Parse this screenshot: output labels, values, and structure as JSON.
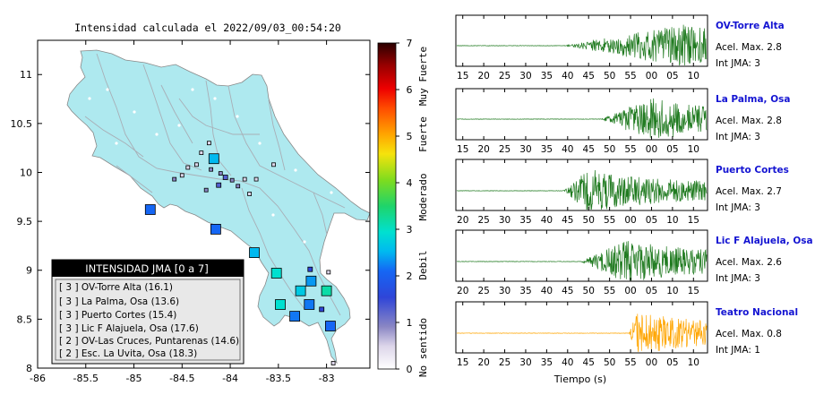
{
  "map": {
    "title": "Intensidad calculada el 2022/09/03_00:54:20",
    "x_ticks": [
      "-86",
      "-85.5",
      "-85",
      "-84.5",
      "-84",
      "-83.5",
      "-83"
    ],
    "y_ticks": [
      "11",
      "10.5",
      "10",
      "9.5",
      "9",
      "8.5",
      "8"
    ],
    "xlim": [
      -86,
      -82.55
    ],
    "ylim": [
      8,
      11.35
    ],
    "legend": {
      "header": "INTENSIDAD JMA [0 a 7]",
      "items": [
        "[ 3 ]  OV-Torre Alta (16.1)",
        "[ 3 ]  La Palma, Osa (13.6)",
        "[ 3 ]  Puerto Cortes (15.4)",
        "[ 3 ]  Lic F Alajuela, Osa (17.6)",
        "[ 2 ]  OV-Las Cruces, Puntarenas (14.6)",
        "[ 2 ]  Esc. La Uvita, Osa (18.3)"
      ]
    }
  },
  "colorbar": {
    "ticks": [
      "0",
      "1",
      "2",
      "3",
      "4",
      "5",
      "6",
      "7"
    ],
    "categories": [
      "No sentido",
      "Debil",
      "Moderado",
      "Fuerte",
      "Muy Fuerte"
    ]
  },
  "colors": {
    "land": "#aee9ef",
    "sea": "#ffffff",
    "trace_green": "#1f7a1f",
    "trace_orange": "#ffa500",
    "station_label": "#1414d2"
  },
  "chart_data": [
    {
      "type": "scatter",
      "title": "Intensidad calculada el 2022/09/03_00:54:20",
      "xlim": [
        -86,
        -82.55
      ],
      "ylim": [
        8,
        11.35
      ],
      "points": [
        {
          "x": -84.17,
          "y": 10.14,
          "intensity": 2.5
        },
        {
          "x": -83.75,
          "y": 9.18,
          "intensity": 2.5
        },
        {
          "x": -83.52,
          "y": 8.97,
          "intensity": 3.0
        },
        {
          "x": -83.16,
          "y": 8.89,
          "intensity": 2.3
        },
        {
          "x": -83.27,
          "y": 8.79,
          "intensity": 2.7
        },
        {
          "x": -83.0,
          "y": 8.79,
          "intensity": 3.2
        },
        {
          "x": -83.48,
          "y": 8.65,
          "intensity": 3.0
        },
        {
          "x": -83.18,
          "y": 8.65,
          "intensity": 2.1
        },
        {
          "x": -83.33,
          "y": 8.53,
          "intensity": 2.1
        },
        {
          "x": -83.17,
          "y": 9.01,
          "intensity": 1.5
        },
        {
          "x": -83.05,
          "y": 8.6,
          "intensity": 1.5
        },
        {
          "x": -84.3,
          "y": 10.2,
          "intensity": 0.5
        },
        {
          "x": -84.35,
          "y": 10.08,
          "intensity": 0.5
        },
        {
          "x": -84.2,
          "y": 10.03,
          "intensity": 1.0
        },
        {
          "x": -84.1,
          "y": 9.99,
          "intensity": 1.0
        },
        {
          "x": -84.05,
          "y": 9.95,
          "intensity": 1.3
        },
        {
          "x": -83.98,
          "y": 9.92,
          "intensity": 1.0
        },
        {
          "x": -83.92,
          "y": 9.86,
          "intensity": 1.0
        },
        {
          "x": -84.12,
          "y": 9.87,
          "intensity": 1.3
        },
        {
          "x": -83.85,
          "y": 9.93,
          "intensity": 0.5
        },
        {
          "x": -83.73,
          "y": 9.93,
          "intensity": 0.5
        },
        {
          "x": -83.55,
          "y": 10.08,
          "intensity": 0.5
        },
        {
          "x": -84.44,
          "y": 10.05,
          "intensity": 0.5
        },
        {
          "x": -84.5,
          "y": 9.97,
          "intensity": 0.5
        },
        {
          "x": -84.58,
          "y": 9.93,
          "intensity": 1.0
        },
        {
          "x": -84.25,
          "y": 9.82,
          "intensity": 1.0
        },
        {
          "x": -83.8,
          "y": 9.78,
          "intensity": 0.5
        },
        {
          "x": -84.22,
          "y": 10.3,
          "intensity": 0.5
        },
        {
          "x": -84.83,
          "y": 9.62,
          "intensity": 2.0
        },
        {
          "x": -84.15,
          "y": 9.42,
          "intensity": 2.0
        },
        {
          "x": -82.98,
          "y": 8.98,
          "intensity": 0.5
        },
        {
          "x": -82.96,
          "y": 8.43,
          "intensity": 2.0
        },
        {
          "x": -82.93,
          "y": 8.05,
          "intensity": 0.5
        }
      ]
    },
    {
      "type": "line",
      "title": "OV-Torre Alta",
      "xlabel": "",
      "x_ticks": [
        "15",
        "20",
        "25",
        "30",
        "35",
        "40",
        "45",
        "50",
        "55",
        "00",
        "05",
        "10"
      ],
      "info": [
        "Acel. Max. 2.8",
        "Int JMA: 3"
      ],
      "color": "#1f7a1f",
      "onset": 0.44,
      "peak": 0.92
    },
    {
      "type": "line",
      "title": "La Palma, Osa",
      "xlabel": "",
      "x_ticks": [
        "15",
        "20",
        "25",
        "30",
        "35",
        "40",
        "45",
        "50",
        "55",
        "00",
        "05",
        "10"
      ],
      "info": [
        "Acel. Max. 2.8",
        "Int JMA: 3"
      ],
      "color": "#1f7a1f",
      "onset": 0.58,
      "peak": 0.78
    },
    {
      "type": "line",
      "title": "Puerto Cortes",
      "xlabel": "",
      "x_ticks": [
        "20",
        "25",
        "30",
        "35",
        "40",
        "45",
        "50",
        "55",
        "00",
        "05",
        "10",
        "15"
      ],
      "info": [
        "Acel. Max. 2.7",
        "Int JMA: 3"
      ],
      "color": "#1f7a1f",
      "onset": 0.43,
      "peak": 0.53
    },
    {
      "type": "line",
      "title": "Lic F Alajuela, Osa",
      "xlabel": "",
      "x_ticks": [
        "20",
        "25",
        "30",
        "35",
        "40",
        "45",
        "50",
        "55",
        "00",
        "05",
        "10",
        "15"
      ],
      "info": [
        "Acel. Max. 2.6",
        "Int JMA: 3"
      ],
      "color": "#1f7a1f",
      "onset": 0.5,
      "peak": 0.68
    },
    {
      "type": "line",
      "title": "Teatro Nacional",
      "xlabel": "Tiempo (s)",
      "x_ticks": [
        "15",
        "20",
        "25",
        "30",
        "35",
        "40",
        "45",
        "50",
        "55",
        "00",
        "05",
        "10"
      ],
      "info": [
        "Acel. Max. 0.8",
        "Int JMA: 1"
      ],
      "color": "#ffa500",
      "onset": 0.69,
      "peak": 0.72
    }
  ]
}
